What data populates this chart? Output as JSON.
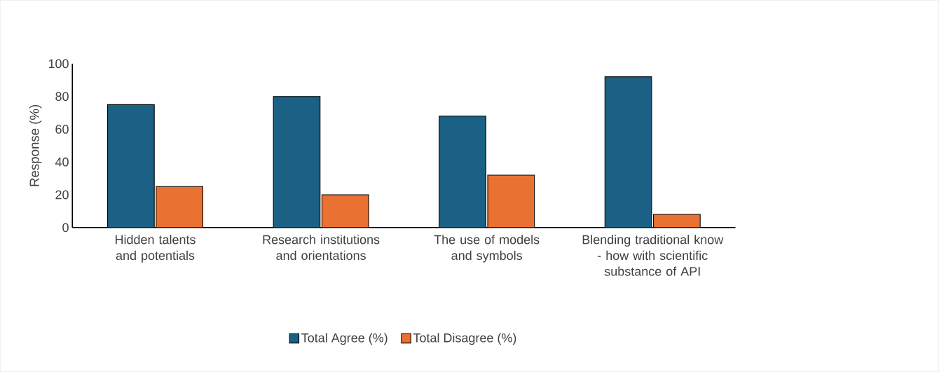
{
  "chart_data": {
    "type": "bar",
    "ylabel": "Response (%)",
    "categories": [
      "Hidden talents and potentials",
      "Research institutions and orientations",
      "The use of models and symbols",
      "Blending traditional know - how with scientific substance of API"
    ],
    "series": [
      {
        "name": "Total Agree (%)",
        "color": "#1a6185",
        "values": [
          75,
          80,
          68,
          92
        ]
      },
      {
        "name": "Total Disagree (%)",
        "color": "#e97132",
        "values": [
          25,
          20,
          32,
          8
        ]
      }
    ],
    "ylim": [
      0,
      100
    ],
    "yticks": [
      0,
      20,
      40,
      60,
      80,
      100
    ],
    "legend": "bottom"
  }
}
